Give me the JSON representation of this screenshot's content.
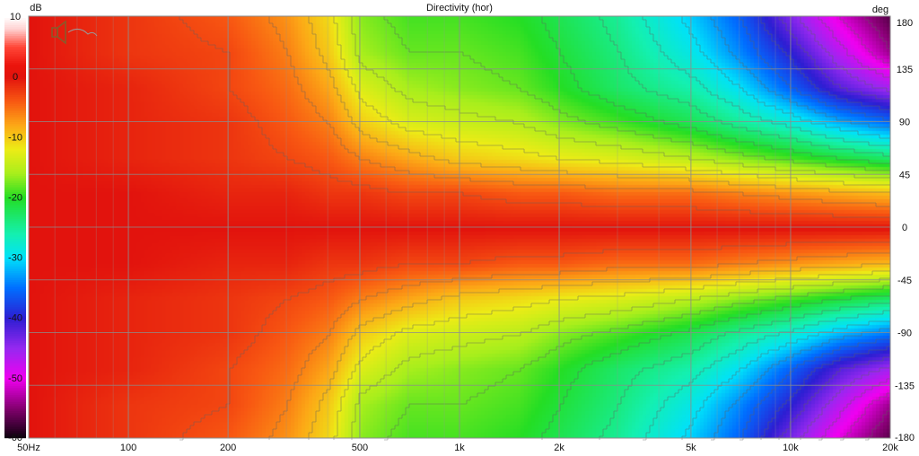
{
  "chart_data": {
    "type": "heatmap",
    "title": "Directivity (hor)",
    "x_scale": "log",
    "xlim": [
      50,
      20000
    ],
    "x_ticks": [
      {
        "value": 50,
        "label": "50Hz"
      },
      {
        "value": 100,
        "label": "100"
      },
      {
        "value": 200,
        "label": "200"
      },
      {
        "value": 500,
        "label": "500"
      },
      {
        "value": 1000,
        "label": "1k"
      },
      {
        "value": 2000,
        "label": "2k"
      },
      {
        "value": 5000,
        "label": "5k"
      },
      {
        "value": 10000,
        "label": "10k"
      },
      {
        "value": 20000,
        "label": "20k"
      }
    ],
    "y_unit": "deg",
    "ylim": [
      -180,
      180
    ],
    "y_ticks": [
      180,
      135,
      90,
      45,
      0,
      -45,
      -90,
      -135,
      -180
    ],
    "colorbar": {
      "unit": "dB",
      "range": [
        -60,
        10
      ],
      "ticks": [
        10,
        0,
        -10,
        -20,
        -30,
        -40,
        -50,
        -60
      ]
    },
    "grid": true,
    "angles_deg": [
      0,
      30,
      60,
      90,
      120,
      150,
      180
    ],
    "freqs_hz": [
      50,
      100,
      200,
      300,
      400,
      500,
      700,
      1000,
      1500,
      2000,
      3000,
      5000,
      7000,
      10000,
      14000,
      20000
    ],
    "levels_db": [
      [
        0,
        0,
        0,
        0,
        0,
        0,
        0,
        0,
        0,
        0,
        0,
        0,
        0,
        0,
        0,
        0
      ],
      [
        0,
        0,
        -1,
        -1,
        -2,
        -2,
        -3,
        -3,
        -4,
        -4,
        -5,
        -5,
        -6,
        -7,
        -8,
        -9
      ],
      [
        0,
        -1,
        -2,
        -3,
        -4,
        -6,
        -8,
        -10,
        -11,
        -12,
        -13,
        -15,
        -17,
        -19,
        -21,
        -23
      ],
      [
        0,
        -1,
        -2,
        -4,
        -6,
        -10,
        -13,
        -14,
        -15,
        -17,
        -19,
        -22,
        -25,
        -28,
        -32,
        -35
      ],
      [
        0,
        -1,
        -3,
        -5,
        -8,
        -13,
        -16,
        -17,
        -18,
        -20,
        -23,
        -26,
        -30,
        -36,
        -42,
        -46
      ],
      [
        0,
        -2,
        -3,
        -6,
        -10,
        -16,
        -18,
        -18,
        -19,
        -21,
        -24,
        -29,
        -34,
        -40,
        -47,
        -54
      ],
      [
        0,
        -2,
        -4,
        -7,
        -11,
        -17,
        -19,
        -19,
        -20,
        -22,
        -25,
        -31,
        -36,
        -44,
        -51,
        -57
      ]
    ]
  },
  "icons": {
    "speaker": "speaker-icon"
  }
}
